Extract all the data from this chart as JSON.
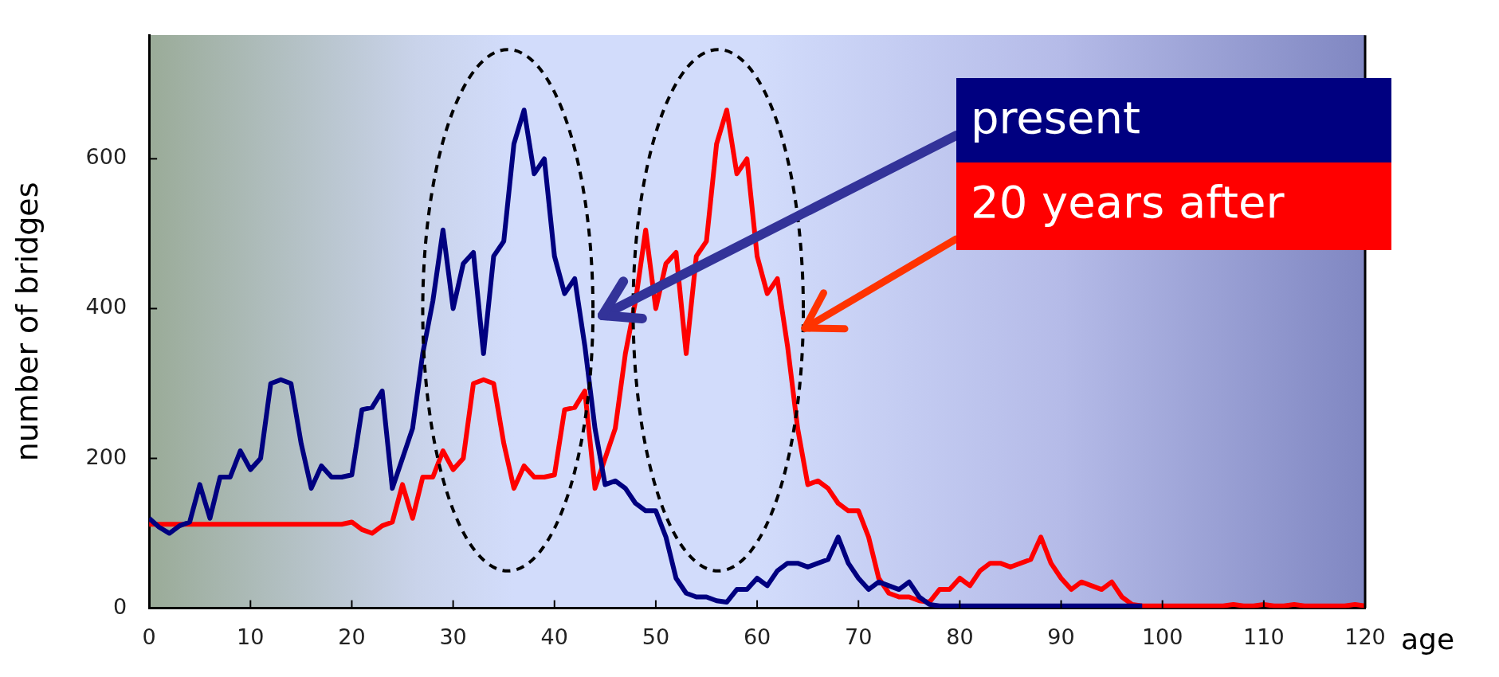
{
  "chart_data": {
    "type": "line",
    "xlabel": "age",
    "ylabel": "number of bridges",
    "x": [
      0,
      1,
      2,
      3,
      4,
      5,
      6,
      7,
      8,
      9,
      10,
      11,
      12,
      13,
      14,
      15,
      16,
      17,
      18,
      19,
      20,
      21,
      22,
      23,
      24,
      25,
      26,
      27,
      28,
      29,
      30,
      31,
      32,
      33,
      34,
      35,
      36,
      37,
      38,
      39,
      40,
      41,
      42,
      43,
      44,
      45,
      46,
      47,
      48,
      49,
      50,
      51,
      52,
      53,
      54,
      55,
      56,
      57,
      58,
      59,
      60,
      61,
      62,
      63,
      64,
      65,
      66,
      67,
      68,
      69,
      70,
      71,
      72,
      73,
      74,
      75,
      76,
      77,
      78,
      79,
      80,
      81,
      82,
      83,
      84,
      85,
      86,
      87,
      88,
      89,
      90,
      91,
      92,
      93,
      94,
      95,
      96,
      97,
      98,
      99,
      100,
      101,
      102,
      103,
      104,
      105,
      106,
      107,
      108,
      109,
      110,
      111,
      112,
      113,
      114,
      115,
      116,
      117,
      118,
      119,
      120
    ],
    "series": [
      {
        "name": "present",
        "color": "#000080",
        "values": [
          120,
          108,
          100,
          110,
          115,
          165,
          120,
          175,
          175,
          210,
          185,
          200,
          300,
          305,
          300,
          220,
          160,
          190,
          175,
          175,
          178,
          265,
          268,
          290,
          160,
          200,
          240,
          340,
          410,
          505,
          400,
          460,
          475,
          340,
          470,
          490,
          620,
          665,
          580,
          600,
          470,
          420,
          440,
          350,
          240,
          165,
          170,
          160,
          140,
          130,
          130,
          95,
          40,
          20,
          15,
          15,
          10,
          8,
          25,
          25,
          40,
          30,
          50,
          60,
          60,
          55,
          60,
          65,
          95,
          60,
          40,
          25,
          35,
          30,
          25,
          35,
          15,
          5,
          3,
          3,
          3,
          3,
          3,
          3,
          3,
          3,
          3,
          3,
          3,
          3,
          3,
          3,
          3,
          3,
          3,
          3,
          3,
          3,
          3,
          null,
          null,
          null,
          null,
          null,
          null,
          null,
          null,
          null,
          null,
          null,
          null,
          null,
          null,
          null,
          null,
          null,
          null,
          null,
          null,
          null,
          null
        ]
      },
      {
        "name": "20 years after",
        "color": "#ff0000",
        "values": [
          112,
          112,
          112,
          112,
          112,
          112,
          112,
          112,
          112,
          112,
          112,
          112,
          112,
          112,
          112,
          112,
          112,
          112,
          112,
          112,
          115,
          105,
          100,
          110,
          115,
          165,
          120,
          175,
          175,
          210,
          185,
          200,
          300,
          305,
          300,
          220,
          160,
          190,
          175,
          175,
          178,
          265,
          268,
          290,
          160,
          200,
          240,
          340,
          410,
          505,
          400,
          460,
          475,
          340,
          470,
          490,
          620,
          665,
          580,
          600,
          470,
          420,
          440,
          350,
          240,
          165,
          170,
          160,
          140,
          130,
          130,
          95,
          40,
          20,
          15,
          15,
          10,
          8,
          25,
          25,
          40,
          30,
          50,
          60,
          60,
          55,
          60,
          65,
          95,
          60,
          40,
          25,
          35,
          30,
          25,
          35,
          15,
          5,
          3,
          3,
          3,
          3,
          3,
          3,
          3,
          3,
          3,
          5,
          3,
          3,
          5,
          3,
          3,
          5,
          3,
          3,
          3,
          3,
          3,
          5,
          3
        ]
      }
    ],
    "xlim": [
      0,
      120
    ],
    "xticks": [
      0,
      10,
      20,
      30,
      40,
      50,
      60,
      70,
      80,
      90,
      100,
      110,
      120
    ],
    "ylim": [
      0,
      765
    ],
    "yticks": [
      0,
      200,
      400,
      600
    ],
    "legend": "top right"
  }
}
